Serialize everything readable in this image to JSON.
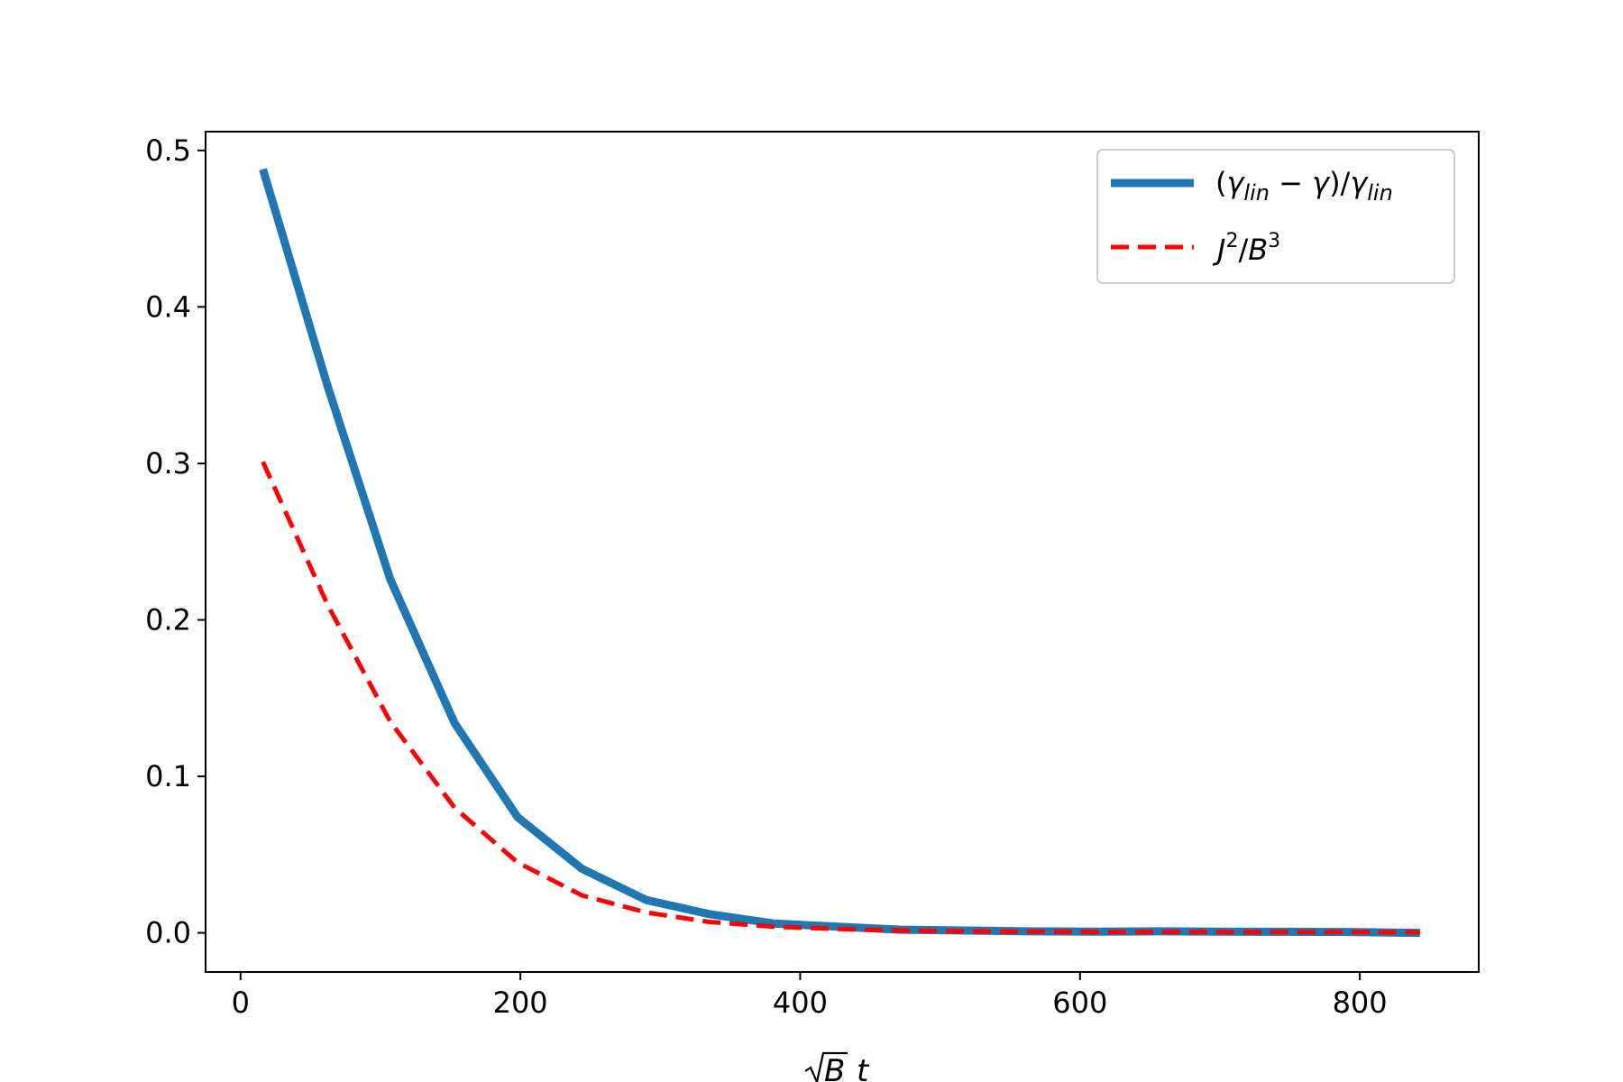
{
  "chart_data": {
    "type": "line",
    "title": "",
    "xlabel": "√Bt",
    "ylabel": "",
    "xlim": [
      -25,
      885
    ],
    "ylim": [
      -0.025,
      0.512
    ],
    "xticks": [
      0,
      200,
      400,
      600,
      800
    ],
    "xtick_labels": [
      "0",
      "200",
      "400",
      "600",
      "800"
    ],
    "yticks": [
      0.0,
      0.1,
      0.2,
      0.3,
      0.4,
      0.5
    ],
    "ytick_labels": [
      "0.0",
      "0.1",
      "0.2",
      "0.3",
      "0.4",
      "0.5"
    ],
    "grid": false,
    "legend_position": "top-right",
    "series": [
      {
        "name": "(γlin − γ)/γlin",
        "color": "#1f77b4",
        "style": "solid",
        "x": [
          16,
          62,
          107,
          153,
          198,
          244,
          290,
          335,
          381,
          427,
          472,
          518,
          563,
          609,
          655,
          700,
          746,
          792,
          843
        ],
        "y": [
          0.488,
          0.35,
          0.226,
          0.134,
          0.074,
          0.041,
          0.021,
          0.012,
          0.006,
          0.004,
          0.002,
          0.0015,
          0.001,
          0.0008,
          0.001,
          0.0008,
          0.0007,
          0.0006,
          0.0
        ]
      },
      {
        "name": "J²/B³",
        "color": "#ff0000",
        "style": "dashed",
        "x": [
          16,
          62,
          107,
          153,
          198,
          244,
          290,
          335,
          381,
          427,
          472,
          518,
          563,
          609,
          655,
          700,
          746,
          792,
          843
        ],
        "y": [
          0.301,
          0.21,
          0.135,
          0.08,
          0.045,
          0.024,
          0.013,
          0.007,
          0.004,
          0.0025,
          0.0015,
          0.001,
          0.0008,
          0.0006,
          0.0006,
          0.0005,
          0.0005,
          0.0005,
          0.0004
        ]
      }
    ]
  }
}
